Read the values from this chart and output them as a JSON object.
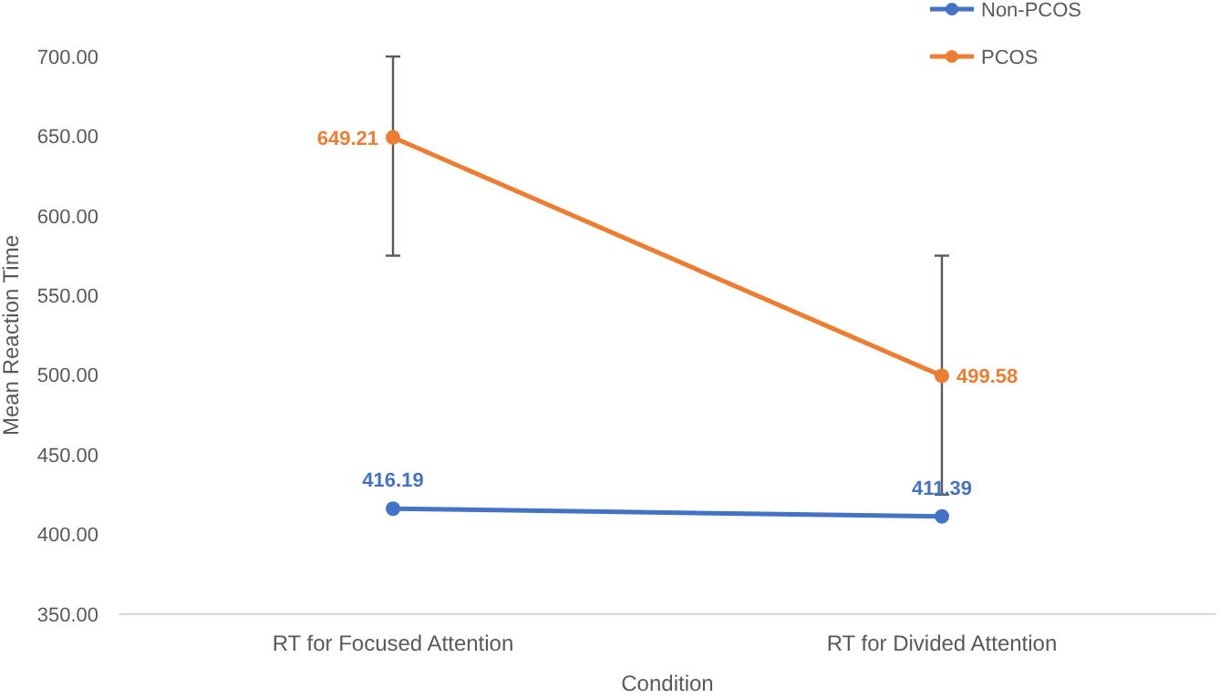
{
  "chart_data": {
    "type": "line",
    "xlabel": "Condition",
    "ylabel": "Mean Reaction Time",
    "categories": [
      "RT for Focused Attention",
      "RT for Divided Attention"
    ],
    "series": [
      {
        "name": "Non-PCOS",
        "color": "#4472c4",
        "values": [
          416.19,
          411.39
        ]
      },
      {
        "name": "PCOS",
        "color": "#ed7d31",
        "values": [
          649.21,
          499.58
        ],
        "errors": [
          [
            575,
            700
          ],
          [
            425,
            575
          ]
        ]
      }
    ],
    "ylim": [
      350,
      700
    ],
    "yticks": [
      {
        "value": 350,
        "label": "350.00"
      },
      {
        "value": 400,
        "label": "400.00"
      },
      {
        "value": 450,
        "label": "450.00"
      },
      {
        "value": 500,
        "label": "500.00"
      },
      {
        "value": 550,
        "label": "550.00"
      },
      {
        "value": 600,
        "label": "600.00"
      },
      {
        "value": 650,
        "label": "650.00"
      },
      {
        "value": 700,
        "label": "700.00"
      }
    ],
    "data_labels": true,
    "marker": "circle",
    "legend": "top right",
    "grid": false
  }
}
